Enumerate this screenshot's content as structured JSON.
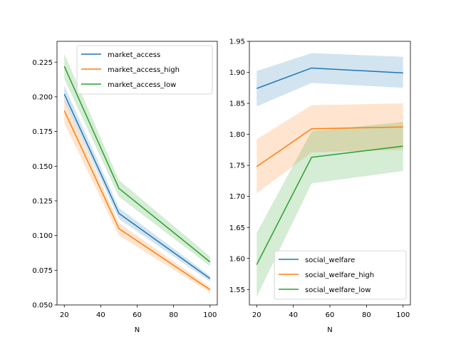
{
  "chart_data": [
    {
      "type": "line",
      "title": "",
      "xlabel": "N",
      "ylabel": "",
      "x": [
        20,
        50,
        100
      ],
      "xlim": [
        16,
        104
      ],
      "ylim": [
        0.05,
        0.24
      ],
      "xticks": [
        20,
        40,
        60,
        80,
        100
      ],
      "xtick_labels": [
        "20",
        "40",
        "60",
        "80",
        "100"
      ],
      "yticks": [
        0.05,
        0.075,
        0.1,
        0.125,
        0.15,
        0.175,
        0.2,
        0.225
      ],
      "ytick_labels": [
        "0.050",
        "0.075",
        "0.100",
        "0.125",
        "0.150",
        "0.175",
        "0.200",
        "0.225"
      ],
      "grid": false,
      "legend_position": "upper-right",
      "series": [
        {
          "name": "market_access",
          "color": "#1f77b4",
          "values": [
            0.202,
            0.116,
            0.069
          ],
          "lower": [
            0.197,
            0.112,
            0.067
          ],
          "upper": [
            0.208,
            0.12,
            0.071
          ]
        },
        {
          "name": "market_access_high",
          "color": "#ff7f0e",
          "values": [
            0.19,
            0.105,
            0.061
          ],
          "lower": [
            0.181,
            0.1,
            0.059
          ],
          "upper": [
            0.198,
            0.109,
            0.063
          ]
        },
        {
          "name": "market_access_low",
          "color": "#2ca02c",
          "values": [
            0.222,
            0.134,
            0.081
          ],
          "lower": [
            0.213,
            0.128,
            0.078
          ],
          "upper": [
            0.231,
            0.14,
            0.085
          ]
        }
      ]
    },
    {
      "type": "line",
      "title": "",
      "xlabel": "N",
      "ylabel": "",
      "x": [
        20,
        50,
        100
      ],
      "xlim": [
        16,
        104
      ],
      "ylim": [
        1.525,
        1.95
      ],
      "xticks": [
        20,
        40,
        60,
        80,
        100
      ],
      "xtick_labels": [
        "20",
        "40",
        "60",
        "80",
        "100"
      ],
      "yticks": [
        1.55,
        1.6,
        1.65,
        1.7,
        1.75,
        1.8,
        1.85,
        1.9,
        1.95
      ],
      "ytick_labels": [
        "1.55",
        "1.60",
        "1.65",
        "1.70",
        "1.75",
        "1.80",
        "1.85",
        "1.90",
        "1.95"
      ],
      "grid": false,
      "legend_position": "lower-right",
      "series": [
        {
          "name": "social_welfare",
          "color": "#1f77b4",
          "values": [
            1.874,
            1.907,
            1.899
          ],
          "lower": [
            1.845,
            1.883,
            1.875
          ],
          "upper": [
            1.902,
            1.931,
            1.925
          ]
        },
        {
          "name": "social_welfare_high",
          "color": "#ff7f0e",
          "values": [
            1.748,
            1.809,
            1.812
          ],
          "lower": [
            1.705,
            1.771,
            1.775
          ],
          "upper": [
            1.792,
            1.847,
            1.85
          ]
        },
        {
          "name": "social_welfare_low",
          "color": "#2ca02c",
          "values": [
            1.59,
            1.763,
            1.781
          ],
          "lower": [
            1.538,
            1.721,
            1.741
          ],
          "upper": [
            1.641,
            1.805,
            1.82
          ]
        }
      ]
    }
  ]
}
